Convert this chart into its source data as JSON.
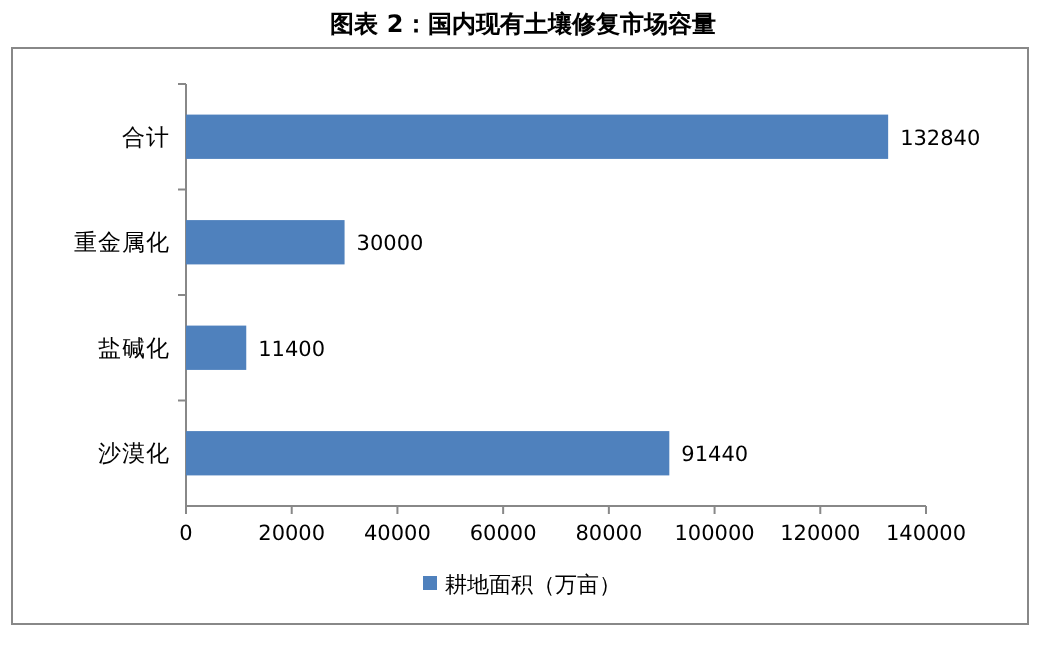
{
  "chart_data": {
    "type": "bar",
    "orientation": "horizontal",
    "title": "图表 2：国内现有土壤修复市场容量",
    "categories": [
      "合计",
      "重金属化",
      "盐碱化",
      "沙漠化"
    ],
    "series": [
      {
        "name": "耕地面积（万亩）",
        "color": "#4f81bd",
        "values": [
          132840,
          30000,
          11400,
          91440
        ]
      }
    ],
    "xlim": [
      0,
      140000
    ],
    "xticks": [
      0,
      20000,
      40000,
      60000,
      80000,
      100000,
      120000,
      140000
    ],
    "data_labels": true,
    "legend": "bottom",
    "grid": false
  }
}
